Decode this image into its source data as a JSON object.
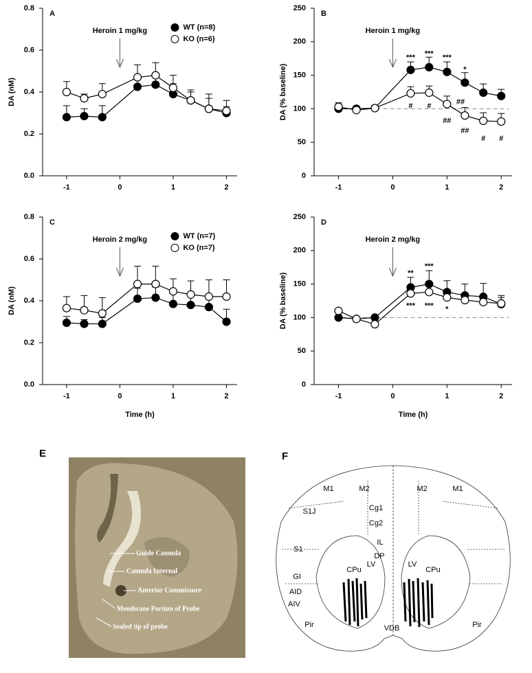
{
  "chart_data": [
    {
      "type": "line",
      "panel": "A",
      "ylabel": "DA (nM)",
      "x": [
        -1,
        -0.67,
        -0.33,
        0.33,
        0.67,
        1,
        1.33,
        1.67,
        2
      ],
      "xlim": [
        -1.45,
        2.2
      ],
      "xticks": [
        -1,
        0,
        1,
        2
      ],
      "ylim": [
        0,
        0.8
      ],
      "yticks": [
        {
          "value": 0,
          "label": "0.0"
        },
        0.2,
        0.4,
        0.6,
        0.8
      ],
      "legend": "upper right",
      "arrow": {
        "text": "Heroin 1 mg/kg",
        "x": 0
      },
      "series": [
        {
          "name": "WT (n=8)",
          "color": "#000000",
          "fill": "#000000",
          "values": [
            0.28,
            0.285,
            0.28,
            0.425,
            0.435,
            0.39,
            0.36,
            0.32,
            0.3
          ],
          "errors": [
            0.055,
            0.035,
            0.055,
            0.04,
            0.04,
            0.05,
            0.05,
            0.05,
            0.03
          ]
        },
        {
          "name": "KO (n=6)",
          "color": "#000000",
          "fill": "#ffffff",
          "values": [
            0.4,
            0.37,
            0.39,
            0.47,
            0.48,
            0.42,
            0.36,
            0.32,
            0.31
          ],
          "errors": [
            0.05,
            0.02,
            0.05,
            0.06,
            0.06,
            0.06,
            0.04,
            0.07,
            0.05
          ]
        }
      ]
    },
    {
      "type": "line",
      "panel": "B",
      "ylabel": "DA (% baseline)",
      "x": [
        -1,
        -0.67,
        -0.33,
        0.33,
        0.67,
        1,
        1.33,
        1.67,
        2
      ],
      "xlim": [
        -1.45,
        2.2
      ],
      "xticks": [
        -1,
        0,
        1,
        2
      ],
      "ylim": [
        0,
        250
      ],
      "yticks": [
        0,
        50,
        100,
        150,
        200,
        250
      ],
      "reference_line": 100,
      "arrow": {
        "text": "Heroin 1 mg/kg",
        "x": 0
      },
      "series": [
        {
          "color": "#000000",
          "fill": "#000000",
          "values": [
            100,
            100,
            101,
            158,
            162,
            155,
            139,
            124,
            119
          ],
          "errors": [
            5,
            4,
            4,
            12,
            15,
            15,
            15,
            13,
            10
          ]
        },
        {
          "color": "#000000",
          "fill": "#ffffff",
          "values": [
            103,
            98,
            101,
            123,
            124,
            107,
            90,
            82,
            81
          ],
          "errors": [
            6,
            4,
            4,
            10,
            10,
            12,
            12,
            12,
            12
          ]
        }
      ],
      "significance": [
        {
          "text": "***",
          "x": 0.33,
          "y": 176
        },
        {
          "text": "***",
          "x": 0.67,
          "y": 182
        },
        {
          "text": "***",
          "x": 1,
          "y": 176
        },
        {
          "text": "*",
          "x": 1.33,
          "y": 158
        },
        {
          "text": "#",
          "x": 0.33,
          "y": 104
        },
        {
          "text": "#",
          "x": 0.67,
          "y": 104
        },
        {
          "text": "##",
          "x": 1.25,
          "y": 110
        },
        {
          "text": "##",
          "x": 1,
          "y": 82
        },
        {
          "text": "##",
          "x": 1.33,
          "y": 67
        },
        {
          "text": "#",
          "x": 1.67,
          "y": 55
        },
        {
          "text": "#",
          "x": 2,
          "y": 55
        }
      ]
    },
    {
      "type": "line",
      "panel": "C",
      "ylabel": "DA (nM)",
      "xlabel": "Time (h)",
      "x": [
        -1,
        -0.67,
        -0.33,
        0.33,
        0.67,
        1,
        1.33,
        1.67,
        2
      ],
      "xlim": [
        -1.45,
        2.2
      ],
      "xticks": [
        -1,
        0,
        1,
        2
      ],
      "ylim": [
        0,
        0.8
      ],
      "yticks": [
        {
          "value": 0,
          "label": "0.0"
        },
        0.2,
        0.4,
        0.6,
        0.8
      ],
      "legend": "upper right",
      "arrow": {
        "text": "Heroin 2 mg/kg",
        "x": 0
      },
      "series": [
        {
          "name": "WT (n=7)",
          "color": "#000000",
          "fill": "#000000",
          "values": [
            0.295,
            0.29,
            0.29,
            0.41,
            0.415,
            0.385,
            0.38,
            0.37,
            0.3
          ],
          "errors": [
            0.03,
            0.02,
            0.03,
            0.05,
            0.05,
            0.05,
            0.05,
            0.04,
            0.06
          ]
        },
        {
          "name": "KO (n=7)",
          "color": "#000000",
          "fill": "#ffffff",
          "values": [
            0.365,
            0.355,
            0.34,
            0.48,
            0.48,
            0.445,
            0.43,
            0.42,
            0.42
          ],
          "errors": [
            0.055,
            0.07,
            0.075,
            0.085,
            0.085,
            0.06,
            0.065,
            0.08,
            0.08
          ]
        }
      ]
    },
    {
      "type": "line",
      "panel": "D",
      "ylabel": "DA (% baseline)",
      "xlabel": "Time (h)",
      "x": [
        -1,
        -0.67,
        -0.33,
        0.33,
        0.67,
        1,
        1.33,
        1.67,
        2
      ],
      "xlim": [
        -1.45,
        2.2
      ],
      "xticks": [
        -1,
        0,
        1,
        2
      ],
      "ylim": [
        0,
        250
      ],
      "yticks": [
        0,
        50,
        100,
        150,
        200,
        250
      ],
      "reference_line": 100,
      "arrow": {
        "text": "Heroin 2 mg/kg",
        "x": 0
      },
      "series": [
        {
          "color": "#000000",
          "fill": "#000000",
          "values": [
            100,
            98,
            100,
            145,
            150,
            138,
            133,
            131,
            120
          ],
          "errors": [
            3,
            3,
            3,
            15,
            20,
            17,
            17,
            20,
            10
          ]
        },
        {
          "color": "#000000",
          "fill": "#ffffff",
          "values": [
            110,
            98,
            90,
            136,
            138,
            130,
            126,
            123,
            121
          ],
          "errors": [
            3,
            3,
            3,
            10,
            10,
            10,
            10,
            10,
            12
          ]
        }
      ],
      "significance": [
        {
          "text": "**",
          "x": 0.33,
          "y": 166
        },
        {
          "text": "***",
          "x": 0.67,
          "y": 176
        },
        {
          "text": "***",
          "x": 0.33,
          "y": 117
        },
        {
          "text": "***",
          "x": 0.67,
          "y": 117
        },
        {
          "text": "*",
          "x": 1,
          "y": 112
        }
      ]
    }
  ],
  "figure_e": {
    "panel": "E",
    "labels": [
      "Guide Cannula",
      "Cannula Internal",
      "Anterior Commissure",
      "Membrane Portion of Probe",
      "Sealed tip of probe"
    ]
  },
  "figure_f": {
    "panel": "F",
    "regions": [
      "M1",
      "M2",
      "Cg1",
      "Cg2",
      "S1J",
      "S1",
      "GI",
      "AID",
      "AIV",
      "CPu",
      "LV",
      "IL",
      "DP",
      "VDB",
      "Pir",
      "M1",
      "M2",
      "CPu",
      "LV",
      "Pir"
    ]
  }
}
